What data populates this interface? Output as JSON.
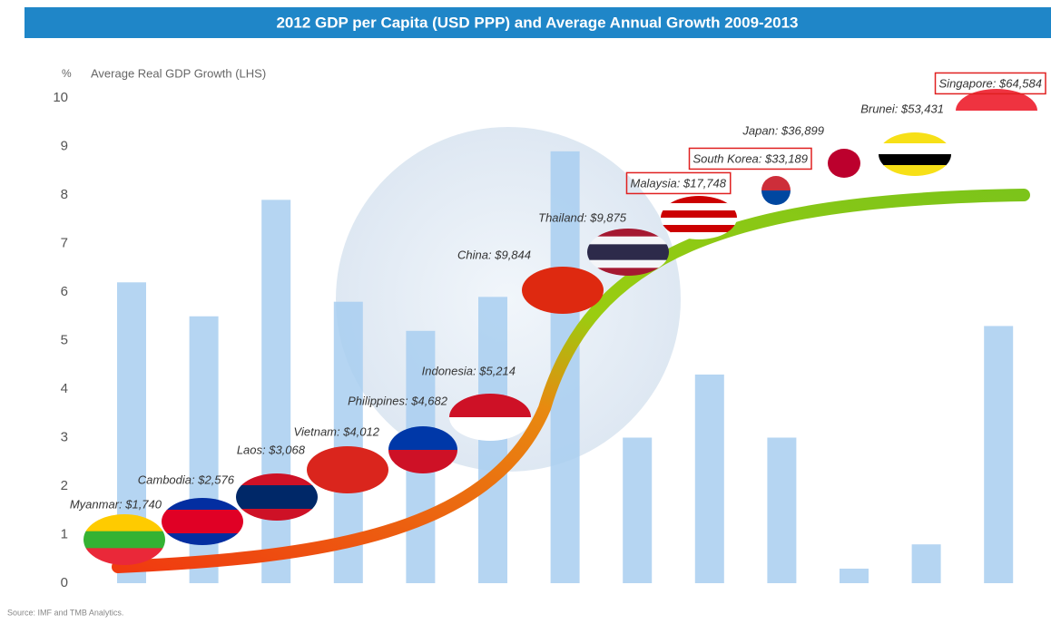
{
  "chart_data": {
    "type": "bar",
    "title": "2012 GDP per Capita (USD PPP) and Average Annual  Growth 2009-2013",
    "y_unit": "%",
    "ylabel": "Average Real GDP Growth (LHS)",
    "categories": [
      null,
      null,
      null,
      null,
      null,
      null,
      null,
      null,
      null,
      null,
      null,
      null,
      null
    ],
    "values": [
      6.2,
      5.5,
      7.9,
      5.8,
      5.2,
      5.9,
      8.9,
      3.0,
      4.3,
      3.0,
      0.3,
      0.8,
      5.3
    ],
    "color": "#a8cef0",
    "ylim": [
      0,
      10
    ],
    "yticks": [
      0,
      1,
      2,
      3,
      4,
      5,
      6,
      7,
      8,
      9,
      10
    ],
    "grid": false,
    "annotations": [
      {
        "text": "Myanmar: $1,740",
        "boxed": false
      },
      {
        "text": "Cambodia: $2,576",
        "boxed": false
      },
      {
        "text": "Laos: $3,068",
        "boxed": false
      },
      {
        "text": "Vietnam: $4,012",
        "boxed": false
      },
      {
        "text": "Philippines: $4,682",
        "boxed": false
      },
      {
        "text": "Indonesia: $5,214",
        "boxed": false
      },
      {
        "text": "China: $9,844",
        "boxed": false
      },
      {
        "text": "Thailand: $9,875",
        "boxed": false
      },
      {
        "text": "Malaysia: $17,748",
        "boxed": true
      },
      {
        "text": "South Korea: $33,189",
        "boxed": true
      },
      {
        "text": "Japan: $36,899",
        "boxed": false
      },
      {
        "text": "Brunei: $53,431",
        "boxed": false
      },
      {
        "text": "Singapore: $64,584",
        "boxed": true
      }
    ],
    "source": "Source: IMF and TMB Analytics."
  }
}
